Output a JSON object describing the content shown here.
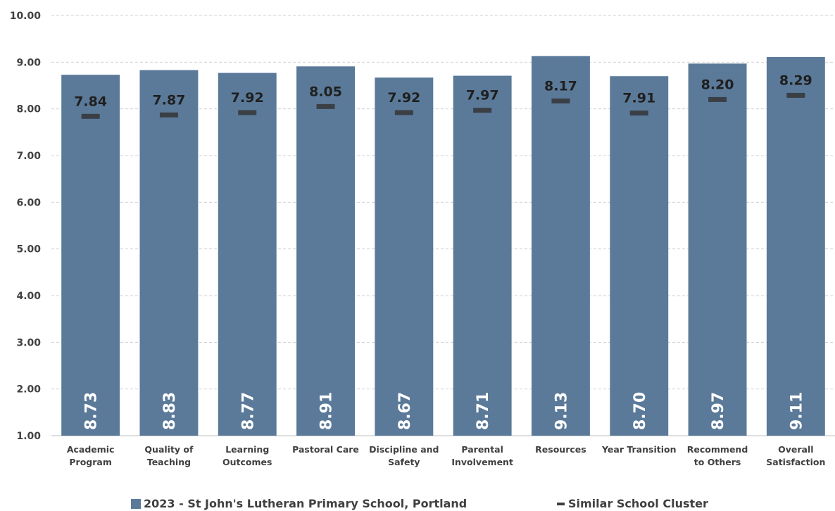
{
  "chart_data": {
    "type": "bar",
    "categories": [
      [
        "Academic",
        "Program"
      ],
      [
        "Quality of",
        "Teaching"
      ],
      [
        "Learning",
        "Outcomes"
      ],
      [
        "Pastoral Care"
      ],
      [
        "Discipline and",
        "Safety"
      ],
      [
        "Parental",
        "Involvement"
      ],
      [
        "Resources"
      ],
      [
        "Year Transition"
      ],
      [
        "Recommend",
        "to Others"
      ],
      [
        "Overall",
        "Satisfaction"
      ]
    ],
    "series": [
      {
        "name": "2023 - St John's Lutheran Primary School, Portland",
        "kind": "bar",
        "color": "#5b7a99",
        "values": [
          8.73,
          8.83,
          8.77,
          8.91,
          8.67,
          8.71,
          9.13,
          8.7,
          8.97,
          9.11
        ]
      },
      {
        "name": "Similar School Cluster",
        "kind": "marker",
        "color": "#3a3f45",
        "values": [
          7.84,
          7.87,
          7.92,
          8.05,
          7.92,
          7.97,
          8.17,
          7.91,
          8.2,
          8.29
        ]
      }
    ],
    "ylim": [
      1,
      10
    ],
    "yticks": [
      "1.00",
      "2.00",
      "3.00",
      "4.00",
      "5.00",
      "6.00",
      "7.00",
      "8.00",
      "9.00",
      "10.00"
    ],
    "value_format_decimals": 2,
    "grid": true,
    "legend": "bottom"
  }
}
